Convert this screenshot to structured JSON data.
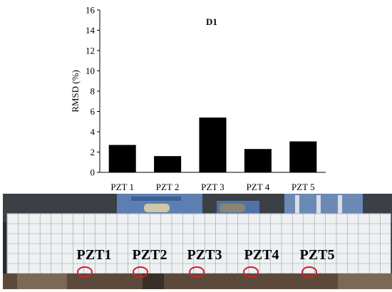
{
  "chart_data": {
    "type": "bar",
    "title": "D1",
    "ylabel": "RMSD (%)",
    "xlabel": "",
    "categories": [
      "PZT 1",
      "PZT 2",
      "PZT 3",
      "PZT 4",
      "PZT 5"
    ],
    "values": [
      2.7,
      1.6,
      5.4,
      2.3,
      3.05
    ],
    "ylim": [
      0,
      16
    ],
    "yticks": [
      0,
      2,
      4,
      6,
      8,
      10,
      12,
      14,
      16
    ],
    "grid": false,
    "legend": "none",
    "bar_color": "#000000"
  },
  "photo": {
    "labels": [
      "PZT1",
      "PZT2",
      "PZT3",
      "PZT4",
      "PZT5"
    ],
    "marker_color": "#d21f26",
    "description_icon": "concrete-beam-photo"
  }
}
